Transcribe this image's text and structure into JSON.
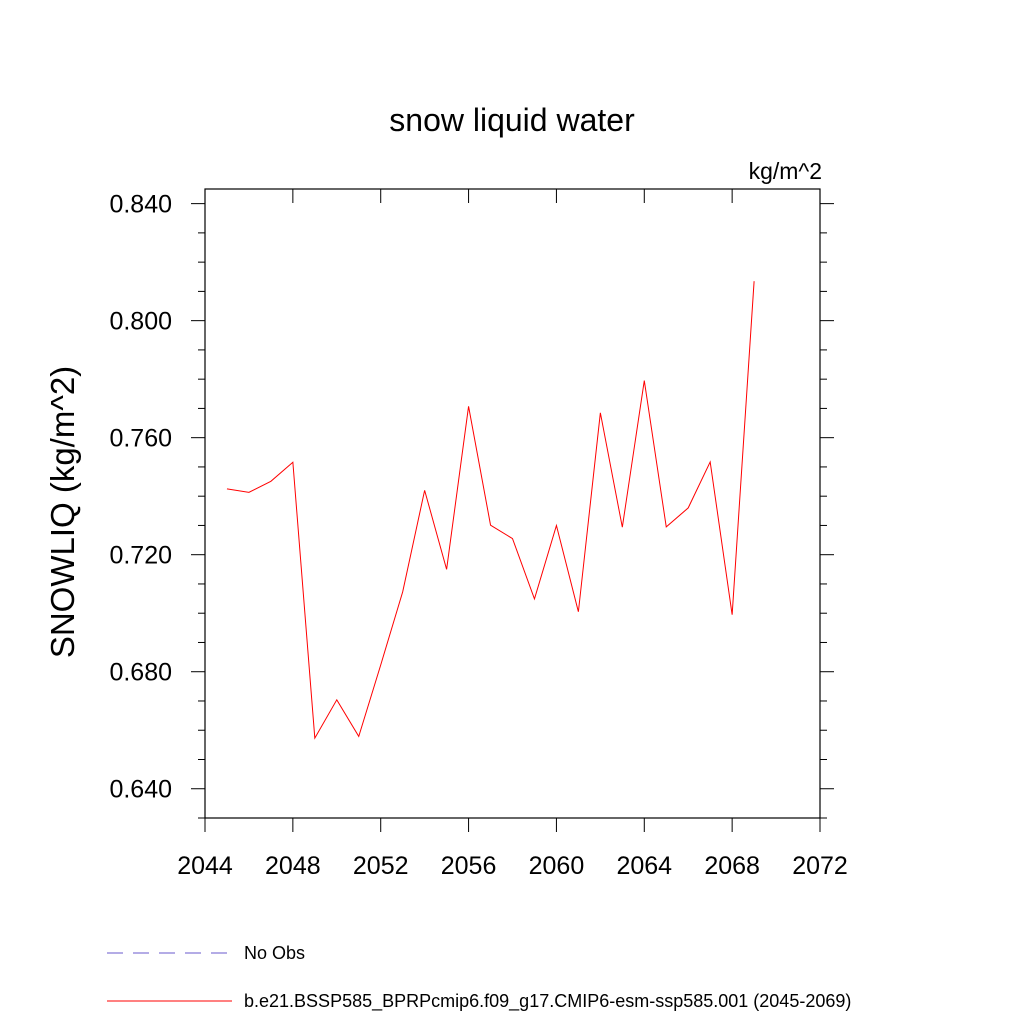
{
  "chart_data": {
    "type": "line",
    "title": "snow liquid water",
    "units": "kg/m^2",
    "ylabel": "SNOWLIQ  (kg/m^2)",
    "xlim": [
      2044,
      2072
    ],
    "ylim": [
      0.63,
      0.845
    ],
    "x_ticks": [
      2044,
      2048,
      2052,
      2056,
      2060,
      2064,
      2068,
      2072
    ],
    "x_tick_labels": [
      "2044",
      "2048",
      "2052",
      "2056",
      "2060",
      "2064",
      "2068",
      "2072"
    ],
    "y_ticks": [
      0.64,
      0.68,
      0.72,
      0.76,
      0.8,
      0.84
    ],
    "y_tick_labels": [
      "0.640",
      "0.680",
      "0.720",
      "0.760",
      "0.800",
      "0.840"
    ],
    "grid": false,
    "series": [
      {
        "name": "b.e21.BSSP585_BPRPcmip6.f09_g17.CMIP6-esm-ssp585.001 (2045-2069)",
        "color": "#ff0000",
        "x": [
          2045,
          2046,
          2047,
          2048,
          2049,
          2050,
          2051,
          2052,
          2053,
          2054,
          2055,
          2056,
          2057,
          2058,
          2059,
          2060,
          2061,
          2062,
          2063,
          2064,
          2065,
          2066,
          2067,
          2068,
          2069
        ],
        "values": [
          0.7425,
          0.7413,
          0.7451,
          0.7516,
          0.6573,
          0.6704,
          0.6579,
          0.6823,
          0.7073,
          0.742,
          0.715,
          0.7707,
          0.7301,
          0.7255,
          0.7049,
          0.73,
          0.7005,
          0.7685,
          0.7294,
          0.7795,
          0.7295,
          0.736,
          0.7517,
          0.6995,
          0.8135
        ]
      }
    ],
    "legend": {
      "position": "bottom",
      "entries": [
        {
          "label": "No Obs",
          "color": "#6a5acd",
          "style": "dashed"
        },
        {
          "label": "b.e21.BSSP585_BPRPcmip6.f09_g17.CMIP6-esm-ssp585.001 (2045-2069)",
          "color": "#ff0000",
          "style": "solid"
        }
      ]
    }
  }
}
